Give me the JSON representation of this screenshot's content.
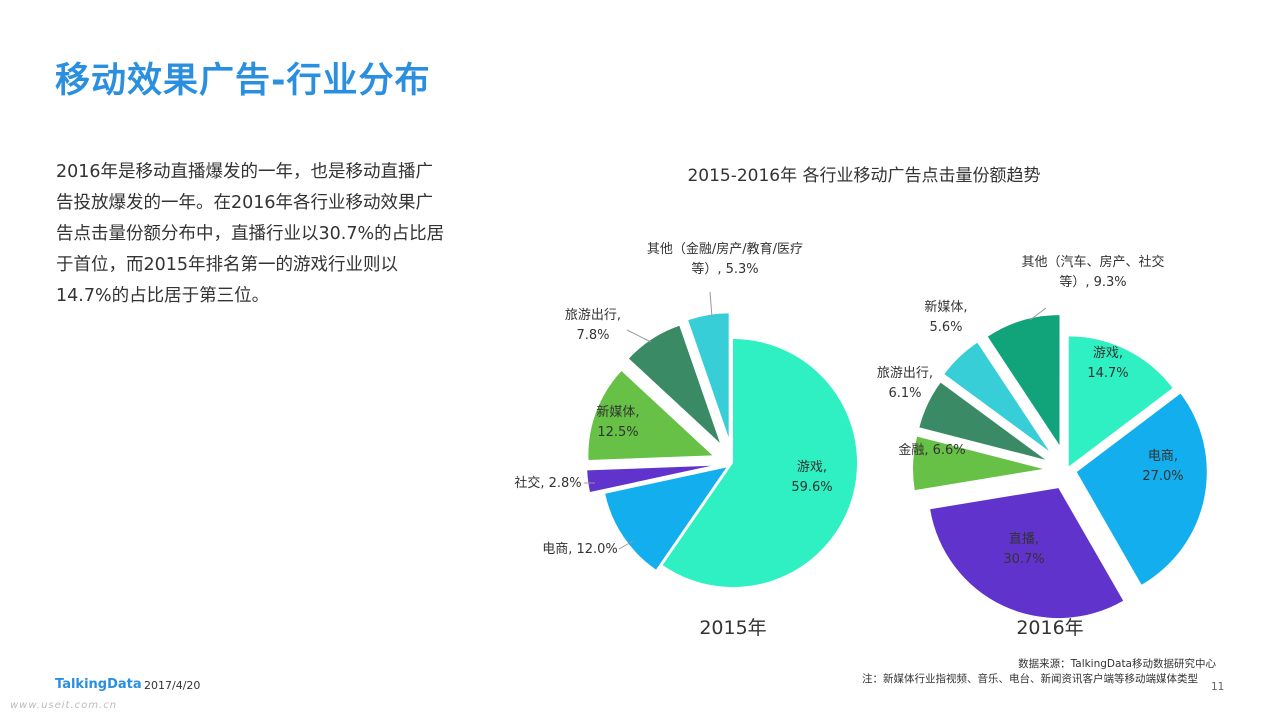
{
  "page": {
    "title": "移动效果广告-行业分布",
    "description": "2016年是移动直播爆发的一年，也是移动直播广告投放爆发的一年。在2016年各行业移动效果广告点击量份额分布中，直播行业以30.7%的占比居于首位，而2015年排名第一的游戏行业则以14.7%的占比居于第三位。",
    "source": "数据来源：TalkingData移动数据研究中心",
    "note": "注：新媒体行业指视频、音乐、电台、新闻资讯客户端等移动端媒体类型",
    "page_number": "11",
    "logo": "TalkingData",
    "date": "2017/4/20",
    "watermark": "www.useit.com.cn"
  },
  "chart_data": {
    "type": "pie",
    "title": "2015-2016年 各行业移动广告点击量份额趋势",
    "charts": [
      {
        "year": "2015年",
        "slices": [
          {
            "name": "游戏",
            "value": 59.6,
            "color": "#2ef0c3",
            "label": [
              "游戏,",
              "59.6%"
            ]
          },
          {
            "name": "电商",
            "value": 12.0,
            "color": "#12aeee",
            "label": [
              "电商, 12.0%"
            ]
          },
          {
            "name": "社交",
            "value": 2.8,
            "color": "#6033cc",
            "label": [
              "社交, 2.8%"
            ]
          },
          {
            "name": "新媒体",
            "value": 12.5,
            "color": "#66c146",
            "label": [
              "新媒体,",
              "12.5%"
            ]
          },
          {
            "name": "旅游出行",
            "value": 7.8,
            "color": "#3b8a66",
            "label": [
              "旅游出行,",
              "7.8%"
            ]
          },
          {
            "name": "其他",
            "value": 5.3,
            "color": "#37ced8",
            "label": [
              "其他（金融/房产/教育/医疗",
              "等）, 5.3%"
            ]
          }
        ]
      },
      {
        "year": "2016年",
        "slices": [
          {
            "name": "游戏",
            "value": 14.7,
            "color": "#2ef0c3",
            "label": [
              "游戏,",
              "14.7%"
            ]
          },
          {
            "name": "电商",
            "value": 27.0,
            "color": "#12aeee",
            "label": [
              "电商,",
              "27.0%"
            ]
          },
          {
            "name": "直播",
            "value": 30.7,
            "color": "#6033cc",
            "label": [
              "直播,",
              "30.7%"
            ]
          },
          {
            "name": "金融",
            "value": 6.6,
            "color": "#66c146",
            "label": [
              "金融, 6.6%"
            ]
          },
          {
            "name": "旅游出行",
            "value": 6.1,
            "color": "#3b8a66",
            "label": [
              "旅游出行,",
              "6.1%"
            ]
          },
          {
            "name": "新媒体",
            "value": 5.6,
            "color": "#37ced8",
            "label": [
              "新媒体,",
              "5.6%"
            ]
          },
          {
            "name": "其他",
            "value": 9.3,
            "color": "#11a37a",
            "label": [
              "其他（汽车、房产、社交",
              "等）, 9.3%"
            ]
          }
        ]
      }
    ]
  }
}
